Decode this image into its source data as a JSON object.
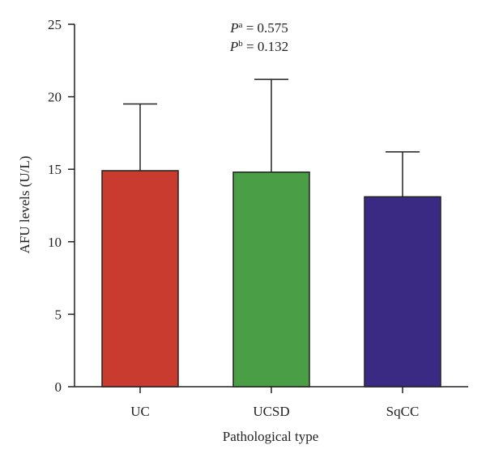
{
  "chart_data": {
    "type": "bar",
    "title": "",
    "xlabel": "Pathological type",
    "ylabel": "AFU levels (U/L)",
    "ylim": [
      0,
      25
    ],
    "yticks": [
      0,
      5,
      10,
      15,
      20,
      25
    ],
    "grid": false,
    "categories": [
      "UC",
      "UCSD",
      "SqCC"
    ],
    "values": [
      14.9,
      14.8,
      13.1
    ],
    "error_upper": [
      19.5,
      21.2,
      16.2
    ],
    "colors": [
      "#c93a2f",
      "#4a9e46",
      "#3a2a83"
    ],
    "annotations": [
      {
        "symbol": "P",
        "superscript": "a",
        "text": " = 0.575"
      },
      {
        "symbol": "P",
        "superscript": "b",
        "text": " = 0.132"
      }
    ]
  }
}
